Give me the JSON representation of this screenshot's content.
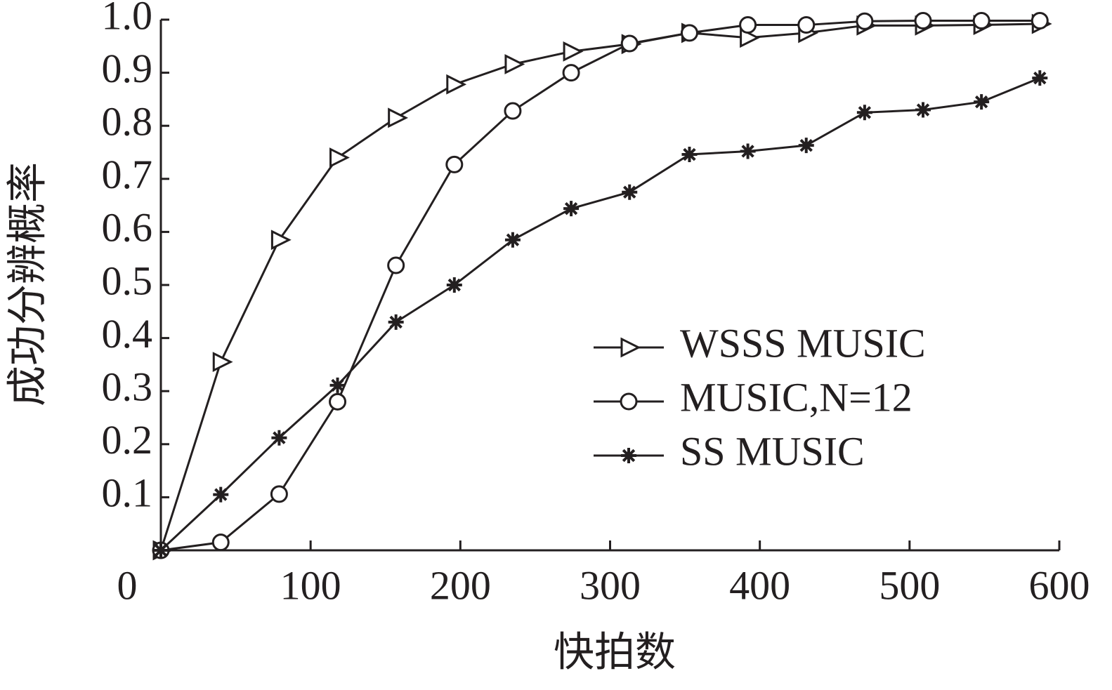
{
  "chart_data": {
    "type": "line",
    "x_label": "快拍数",
    "y_label": "成功分辨概率",
    "xlim": [
      0,
      600
    ],
    "ylim": [
      0,
      1
    ],
    "xticks": [
      0,
      100,
      200,
      300,
      400,
      500,
      600
    ],
    "yticks": [
      0.1,
      0.2,
      0.3,
      0.4,
      0.5,
      0.6,
      0.7,
      0.8,
      0.9,
      {
        "value": 1,
        "label": "1.0"
      }
    ],
    "x": [
      0,
      40,
      79,
      118,
      157,
      196,
      235,
      274,
      313,
      353,
      392,
      431,
      470,
      509,
      548,
      587
    ],
    "series": [
      {
        "name": "WSSS MUSIC",
        "color": "#231f20",
        "marker": "triangle",
        "values": [
          0,
          0.355,
          0.585,
          0.74,
          0.815,
          0.878,
          0.916,
          0.94,
          0.954,
          0.975,
          0.966,
          0.975,
          0.989,
          0.989,
          0.99,
          0.992
        ]
      },
      {
        "name": "MUSIC,N=12",
        "color": "#231f20",
        "marker": "circle",
        "values": [
          0,
          0.015,
          0.106,
          0.28,
          0.537,
          0.727,
          0.828,
          0.9,
          0.955,
          0.975,
          0.99,
          0.99,
          0.997,
          0.998,
          0.998,
          0.998
        ]
      },
      {
        "name": "SS MUSIC",
        "color": "#231f20",
        "marker": "asterisk",
        "values": [
          0,
          0.105,
          0.212,
          0.311,
          0.43,
          0.5,
          0.585,
          0.644,
          0.675,
          0.746,
          0.752,
          0.763,
          0.825,
          0.83,
          0.845,
          0.89
        ]
      }
    ]
  }
}
